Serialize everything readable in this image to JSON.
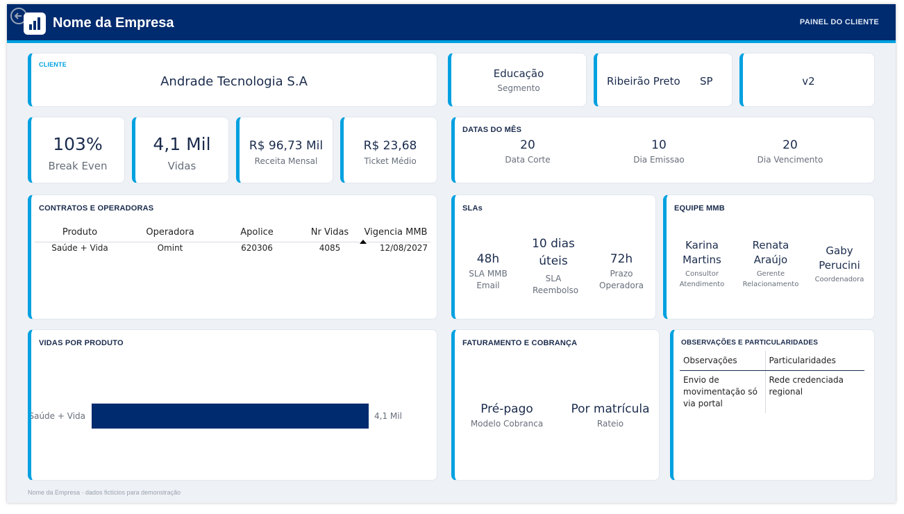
{
  "header": {
    "brand": "Nome da Empresa",
    "panel_label": "PAINEL DO CLIENTE",
    "back_icon": "back-arrow-icon",
    "logo_icon": "bar-chart-icon",
    "colors": {
      "navy": "#002b6f",
      "accent": "#00a1e0"
    }
  },
  "client": {
    "label": "CLIENTE",
    "name": "Andrade Tecnologia S.A"
  },
  "segment": {
    "value": "Educação",
    "label": "Segmento"
  },
  "location": {
    "city": "Ribeirão Preto",
    "state": "SP"
  },
  "version": {
    "value": "v2"
  },
  "kpis": [
    {
      "value": "103%",
      "label": "Break Even"
    },
    {
      "value": "4,1 Mil",
      "label": "Vidas"
    },
    {
      "value": "R$ 96,73 Mil",
      "label": "Receita Mensal"
    },
    {
      "value": "R$ 23,68",
      "label": "Ticket Médio"
    }
  ],
  "dates": {
    "title": "DATAS DO MÊS",
    "items": [
      {
        "value": "20",
        "label": "Data Corte"
      },
      {
        "value": "10",
        "label": "Dia Emissao"
      },
      {
        "value": "20",
        "label": "Dia Vencimento"
      }
    ]
  },
  "contracts": {
    "title": "CONTRATOS E OPERADORAS",
    "columns": [
      "Produto",
      "Operadora",
      "Apolice",
      "Nr Vidas",
      "Vigencia MMB"
    ],
    "rows": [
      [
        "Saúde + Vida",
        "Omint",
        "620306",
        "4085",
        "12/08/2027"
      ]
    ]
  },
  "slas": {
    "title": "SLAs",
    "items": [
      {
        "value": "48h",
        "label": "SLA MMB Email"
      },
      {
        "value": "10 dias úteis",
        "label": "SLA Reembolso"
      },
      {
        "value": "72h",
        "label": "Prazo Operadora"
      }
    ]
  },
  "team": {
    "title": "EQUIPE MMB",
    "members": [
      {
        "name": "Karina Martins",
        "role": "Consultor Atendimento"
      },
      {
        "name": "Renata Araújo",
        "role": "Gerente Relacionamento"
      },
      {
        "name": "Gaby Perucini",
        "role": "Coordenadora"
      }
    ]
  },
  "vidas_produto": {
    "title": "VIDAS POR PRODUTO"
  },
  "chart_data": {
    "type": "bar",
    "orientation": "horizontal",
    "categories": [
      "Saúde + Vida"
    ],
    "values": [
      4085
    ],
    "data_labels": [
      "4,1 Mil"
    ],
    "title": "VIDAS POR PRODUTO",
    "xlabel": "",
    "ylabel": "",
    "xlim": [
      0,
      4085
    ],
    "grid": false,
    "color": "#002b6f"
  },
  "billing": {
    "title": "FATURAMENTO E COBRANÇA",
    "items": [
      {
        "value": "Pré-pago",
        "label": "Modelo Cobranca"
      },
      {
        "value": "Por matrícula",
        "label": "Rateio"
      }
    ]
  },
  "observations": {
    "title": "OBSERVAÇÕES E PARTICULARIDADES",
    "columns": [
      "Observações",
      "Particularidades"
    ],
    "rows": [
      [
        "Envio de movimentação só via portal",
        "Rede credenciada regional"
      ]
    ]
  },
  "footer": {
    "text": "Nome da Empresa · dados fictícios para demonstração"
  }
}
